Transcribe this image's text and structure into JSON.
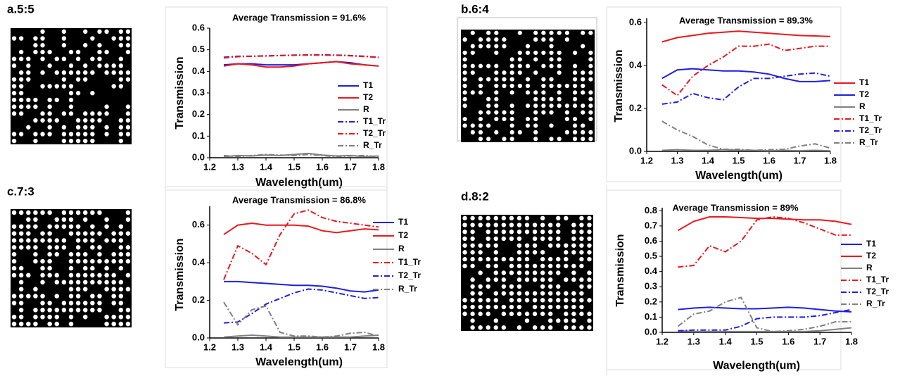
{
  "chart_data": [
    {
      "type": "line",
      "label": "a.5:5",
      "title": "Average Transmission = 91.6%",
      "x_label": "Wavelength(um)",
      "y_label": "Transmission",
      "x": [
        1.25,
        1.3,
        1.35,
        1.4,
        1.45,
        1.5,
        1.55,
        1.6,
        1.65,
        1.7,
        1.75,
        1.8
      ],
      "xlim": [
        1.2,
        1.8
      ],
      "ylim": [
        0,
        0.6
      ],
      "xticks": [
        1.2,
        1.3,
        1.4,
        1.5,
        1.6,
        1.7,
        1.8
      ],
      "yticks": [
        {
          "value": 0,
          "label": "0.0"
        },
        0.1,
        0.2,
        0.3,
        0.4,
        0.5,
        0.6
      ],
      "series": [
        {
          "name": "T1",
          "color": "#1f1fe0",
          "style": "solid",
          "values": [
            0.43,
            0.435,
            0.435,
            0.43,
            0.43,
            0.43,
            0.435,
            0.44,
            0.445,
            0.44,
            0.43,
            0.425
          ]
        },
        {
          "name": "T2",
          "color": "#e8191e",
          "style": "solid",
          "values": [
            0.425,
            0.435,
            0.43,
            0.42,
            0.42,
            0.425,
            0.435,
            0.44,
            0.445,
            0.435,
            0.43,
            0.425
          ]
        },
        {
          "name": "R",
          "color": "#808080",
          "style": "solid",
          "values": [
            0.005,
            0.01,
            0.008,
            0.012,
            0.01,
            0.015,
            0.02,
            0.012,
            0.008,
            0.01,
            0.005,
            0.008
          ]
        },
        {
          "name": "T1_Tr",
          "color": "#1f1fe0",
          "style": "dashdot",
          "values": [
            0.465,
            0.47,
            0.47,
            0.472,
            0.473,
            0.475,
            0.476,
            0.476,
            0.475,
            0.473,
            0.47,
            0.465
          ]
        },
        {
          "name": "T2_Tr",
          "color": "#e8191e",
          "style": "dashdot",
          "values": [
            0.462,
            0.468,
            0.47,
            0.471,
            0.473,
            0.474,
            0.475,
            0.475,
            0.474,
            0.472,
            0.469,
            0.464
          ]
        },
        {
          "name": "R_Tr",
          "color": "#808080",
          "style": "dashdot",
          "values": [
            0.01,
            0.005,
            0.01,
            0.015,
            0.012,
            0.01,
            0.015,
            0.01,
            0.005,
            0.008,
            0.01,
            0.005
          ]
        }
      ]
    },
    {
      "type": "line",
      "label": "b.6:4",
      "title": "Average Transmission = 89.3%",
      "x_label": "Wavelength(um)",
      "y_label": "Transmission",
      "x": [
        1.25,
        1.3,
        1.35,
        1.4,
        1.45,
        1.5,
        1.55,
        1.6,
        1.65,
        1.7,
        1.75,
        1.8
      ],
      "xlim": [
        1.2,
        1.8
      ],
      "ylim": [
        0,
        0.62
      ],
      "xticks": [
        1.2,
        1.3,
        1.4,
        1.5,
        1.6,
        1.7,
        1.8
      ],
      "yticks": [
        {
          "value": 0,
          "label": "0.0"
        },
        0.2,
        0.4,
        0.6
      ],
      "series": [
        {
          "name": "T1",
          "color": "#e8191e",
          "style": "solid",
          "values": [
            0.51,
            0.53,
            0.54,
            0.55,
            0.555,
            0.56,
            0.555,
            0.55,
            0.545,
            0.54,
            0.538,
            0.535
          ]
        },
        {
          "name": "T2",
          "color": "#1f1fe0",
          "style": "solid",
          "values": [
            0.34,
            0.38,
            0.385,
            0.38,
            0.375,
            0.375,
            0.37,
            0.36,
            0.34,
            0.325,
            0.325,
            0.33
          ]
        },
        {
          "name": "R",
          "color": "#808080",
          "style": "solid",
          "values": [
            0.005,
            0.008,
            0.005,
            0.005,
            0.008,
            0.005,
            0.005,
            0.003,
            0.005,
            0.003,
            0.005,
            0.003
          ]
        },
        {
          "name": "T1_Tr",
          "color": "#e8191e",
          "style": "dashdot",
          "values": [
            0.31,
            0.26,
            0.35,
            0.4,
            0.44,
            0.49,
            0.49,
            0.5,
            0.47,
            0.48,
            0.49,
            0.49
          ]
        },
        {
          "name": "T2_Tr",
          "color": "#1f1fe0",
          "style": "dashdot",
          "values": [
            0.22,
            0.23,
            0.27,
            0.25,
            0.24,
            0.3,
            0.34,
            0.34,
            0.35,
            0.36,
            0.365,
            0.35
          ]
        },
        {
          "name": "R_Tr",
          "color": "#808080",
          "style": "dashdot",
          "values": [
            0.14,
            0.1,
            0.07,
            0.03,
            0.01,
            0.01,
            0.005,
            0.008,
            0.01,
            0.025,
            0.035,
            0.015
          ]
        }
      ]
    },
    {
      "type": "line",
      "label": "c.7:3",
      "title": "Average Transmission = 86.8%",
      "x_label": "Wavelength(um)",
      "y_label": "Transmission",
      "x": [
        1.25,
        1.3,
        1.35,
        1.4,
        1.45,
        1.5,
        1.55,
        1.6,
        1.65,
        1.7,
        1.75,
        1.8
      ],
      "xlim": [
        1.2,
        1.8
      ],
      "ylim": [
        0,
        0.7
      ],
      "xticks": [
        1.2,
        1.3,
        1.4,
        1.5,
        1.6,
        1.7,
        1.8
      ],
      "yticks": [
        {
          "value": 0,
          "label": "0.0"
        },
        0.2,
        0.4,
        0.6
      ],
      "series": [
        {
          "name": "T1",
          "color": "#1f1fe0",
          "style": "solid",
          "values": [
            0.3,
            0.3,
            0.295,
            0.29,
            0.285,
            0.28,
            0.28,
            0.275,
            0.265,
            0.25,
            0.245,
            0.255
          ]
        },
        {
          "name": "T2",
          "color": "#e8191e",
          "style": "solid",
          "values": [
            0.55,
            0.6,
            0.61,
            0.6,
            0.6,
            0.6,
            0.595,
            0.57,
            0.56,
            0.57,
            0.58,
            0.575
          ]
        },
        {
          "name": "R",
          "color": "#808080",
          "style": "solid",
          "values": [
            0.005,
            0.01,
            0.015,
            0.01,
            0.005,
            0.005,
            0.005,
            0.005,
            0.005,
            0.005,
            0.01,
            0.015
          ]
        },
        {
          "name": "T1_Tr",
          "color": "#e8191e",
          "style": "dashdot",
          "values": [
            0.31,
            0.49,
            0.45,
            0.39,
            0.55,
            0.66,
            0.68,
            0.64,
            0.62,
            0.61,
            0.6,
            0.59
          ]
        },
        {
          "name": "T2_Tr",
          "color": "#1f1fe0",
          "style": "dashdot",
          "values": [
            0.08,
            0.085,
            0.13,
            0.18,
            0.21,
            0.24,
            0.26,
            0.255,
            0.24,
            0.225,
            0.21,
            0.215
          ]
        },
        {
          "name": "R_Tr",
          "color": "#808080",
          "style": "dashdot",
          "values": [
            0.19,
            0.07,
            0.15,
            0.17,
            0.03,
            0.01,
            0.01,
            0.005,
            0.01,
            0.025,
            0.03,
            0.01
          ]
        }
      ]
    },
    {
      "type": "line",
      "label": "d.8:2",
      "title": "Average Transmission = 89%",
      "x_label": "Wavelength(um)",
      "y_label": "Transmission",
      "x": [
        1.25,
        1.3,
        1.35,
        1.4,
        1.45,
        1.5,
        1.55,
        1.6,
        1.65,
        1.7,
        1.75,
        1.8
      ],
      "xlim": [
        1.2,
        1.8
      ],
      "ylim": [
        0,
        0.82
      ],
      "xticks": [
        1.2,
        1.3,
        1.4,
        1.5,
        1.6,
        1.7,
        1.8
      ],
      "yticks": [
        {
          "value": 0,
          "label": "0.0"
        },
        0.1,
        0.2,
        0.3,
        0.4,
        0.5,
        0.6,
        0.7,
        0.8
      ],
      "series": [
        {
          "name": "T1",
          "color": "#1f1fe0",
          "style": "solid",
          "values": [
            0.15,
            0.16,
            0.165,
            0.16,
            0.155,
            0.155,
            0.16,
            0.165,
            0.16,
            0.15,
            0.14,
            0.135
          ]
        },
        {
          "name": "T2",
          "color": "#e8191e",
          "style": "solid",
          "values": [
            0.67,
            0.73,
            0.76,
            0.76,
            0.755,
            0.75,
            0.75,
            0.745,
            0.74,
            0.74,
            0.73,
            0.71
          ]
        },
        {
          "name": "R",
          "color": "#808080",
          "style": "solid",
          "values": [
            0.01,
            0.005,
            0.005,
            0.005,
            0.005,
            0.005,
            0.005,
            0.005,
            0.005,
            0.01,
            0.02,
            0.03
          ]
        },
        {
          "name": "T1_Tr",
          "color": "#e8191e",
          "style": "dashdot",
          "values": [
            0.43,
            0.44,
            0.57,
            0.53,
            0.6,
            0.74,
            0.76,
            0.75,
            0.72,
            0.68,
            0.64,
            0.64
          ]
        },
        {
          "name": "T2_Tr",
          "color": "#1f1fe0",
          "style": "dashdot",
          "values": [
            0.01,
            0.015,
            0.015,
            0.015,
            0.04,
            0.09,
            0.1,
            0.1,
            0.1,
            0.11,
            0.13,
            0.15
          ]
        },
        {
          "name": "R_Tr",
          "color": "#808080",
          "style": "dashdot",
          "values": [
            0.04,
            0.12,
            0.14,
            0.2,
            0.23,
            0.03,
            0.005,
            0.01,
            0.02,
            0.04,
            0.07,
            0.07
          ]
        }
      ]
    }
  ]
}
